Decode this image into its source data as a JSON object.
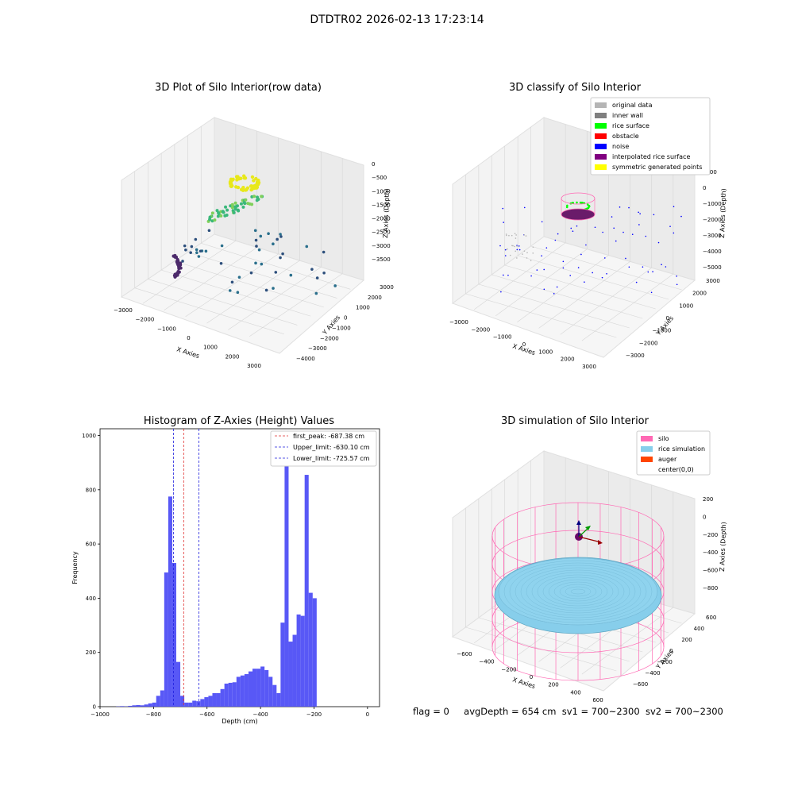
{
  "figure": {
    "suptitle": "DTDTR02 2026-02-13 17:23:14"
  },
  "status": {
    "flag": "flag = 0",
    "avg_depth": "avgDepth = 654 cm",
    "sv1": "sv1 = 700~2300",
    "sv2": "sv2 = 700~2300"
  },
  "colors": {
    "hist_bar": "#4f4ff5",
    "first_peak": "#e03030",
    "limit": "#2020dd",
    "pane": "#f2f2f2",
    "grid": "#d8d8d8"
  },
  "chart_data": [
    {
      "type": "scatter",
      "projection": "3d",
      "title": "3D Plot of Silo Interior(row data)",
      "xlabel": "X Axies",
      "ylabel": "Y Axies",
      "zlabel": "Z Axies (Depth)",
      "xticks": [
        "−3000",
        "−2000",
        "−1000",
        "0",
        "1000",
        "2000",
        "3000"
      ],
      "yticks": [
        "−4000",
        "−3000",
        "−2000",
        "−1000",
        "0",
        "1000",
        "2000",
        "3000"
      ],
      "zticks": [
        "0",
        "−500",
        "−1000",
        "−1500",
        "−2000",
        "−2500",
        "−3000",
        "−3500"
      ],
      "colormap": "viridis",
      "point_groups": [
        {
          "region": "top-surface",
          "color": "#e8e81a"
        },
        {
          "region": "upper-arc",
          "color": "#3ab87a"
        },
        {
          "region": "lower-left-arc",
          "color": "#4c2a6b"
        },
        {
          "region": "scattered",
          "color": "#2a6f8c"
        }
      ]
    },
    {
      "type": "scatter",
      "projection": "3d",
      "title": "3D classify of Silo Interior",
      "xlabel": "X Axies",
      "ylabel": "Y Axies",
      "zlabel": "Z Axies (Depth)",
      "xticks": [
        "−3000",
        "−2000",
        "−1000",
        "0",
        "1000",
        "2000",
        "3000"
      ],
      "yticks": [
        "−3000",
        "−2000",
        "−1000",
        "0",
        "1000",
        "2000",
        "3000"
      ],
      "zticks": [
        "1000",
        "0",
        "−1000",
        "−2000",
        "−3000",
        "−4000",
        "−5000"
      ],
      "legend": [
        {
          "label": "original data",
          "color": "#b5b5b5"
        },
        {
          "label": "inner wall",
          "color": "#808080"
        },
        {
          "label": "rice surface",
          "color": "#00ff00"
        },
        {
          "label": "obstacle",
          "color": "#ff0000"
        },
        {
          "label": "noise",
          "color": "#0000ff"
        },
        {
          "label": "interpolated rice surface",
          "color": "#800080"
        },
        {
          "label": "symmetric generated points",
          "color": "#ffff00"
        }
      ],
      "legend_loc": "upper right"
    },
    {
      "type": "bar",
      "title": "Histogram of Z-Axies (Height) Values",
      "xlabel": "Depth (cm)",
      "ylabel": "Frequency",
      "xlim": [
        -1000,
        45
      ],
      "ylim": [
        0,
        1025
      ],
      "xticks": [
        -1000,
        -800,
        -600,
        -400,
        -200,
        0
      ],
      "yticks": [
        0,
        200,
        400,
        600,
        800,
        1000
      ],
      "bin_width": 15,
      "bin_start": -940,
      "values": [
        1,
        2,
        1,
        3,
        5,
        6,
        5,
        8,
        12,
        15,
        40,
        60,
        495,
        775,
        530,
        165,
        40,
        15,
        15,
        22,
        20,
        28,
        35,
        40,
        50,
        50,
        65,
        85,
        88,
        90,
        110,
        115,
        120,
        130,
        140,
        140,
        148,
        135,
        110,
        80,
        50,
        310,
        980,
        240,
        265,
        340,
        335,
        855,
        420,
        400
      ],
      "series": [
        {
          "name": "",
          "color": "#4f4ff5"
        }
      ],
      "vlines": [
        {
          "name": "first_peak: -687.38 cm",
          "x": -687.38,
          "color": "#e03030"
        },
        {
          "name": "Upper_limit: -630.10 cm",
          "x": -630.1,
          "color": "#2020dd"
        },
        {
          "name": "Lower_limit: -725.57 cm",
          "x": -725.57,
          "color": "#2020dd"
        }
      ],
      "legend_loc": "upper right",
      "grid": false
    },
    {
      "type": "surface",
      "projection": "3d",
      "title": "3D simulation of Silo Interior",
      "xlabel": "X Axies",
      "ylabel": "Y Axies",
      "zlabel": "Z Axies (Depth)",
      "xticks": [
        "−600",
        "−400",
        "−200",
        "0",
        "200",
        "400",
        "600"
      ],
      "yticks": [
        "−600",
        "−400",
        "−200",
        "0",
        "200",
        "400",
        "600"
      ],
      "zticks": [
        "200",
        "0",
        "−200",
        "−400",
        "−600",
        "−800"
      ],
      "legend": [
        {
          "label": "silo",
          "color": "#ff69b4"
        },
        {
          "label": "rice simulation",
          "color": "#87ceeb"
        },
        {
          "label": "auger",
          "color": "#ff4500"
        },
        {
          "label": "center(0,0)",
          "color": "#ffffff"
        }
      ],
      "legend_loc": "upper right"
    }
  ]
}
